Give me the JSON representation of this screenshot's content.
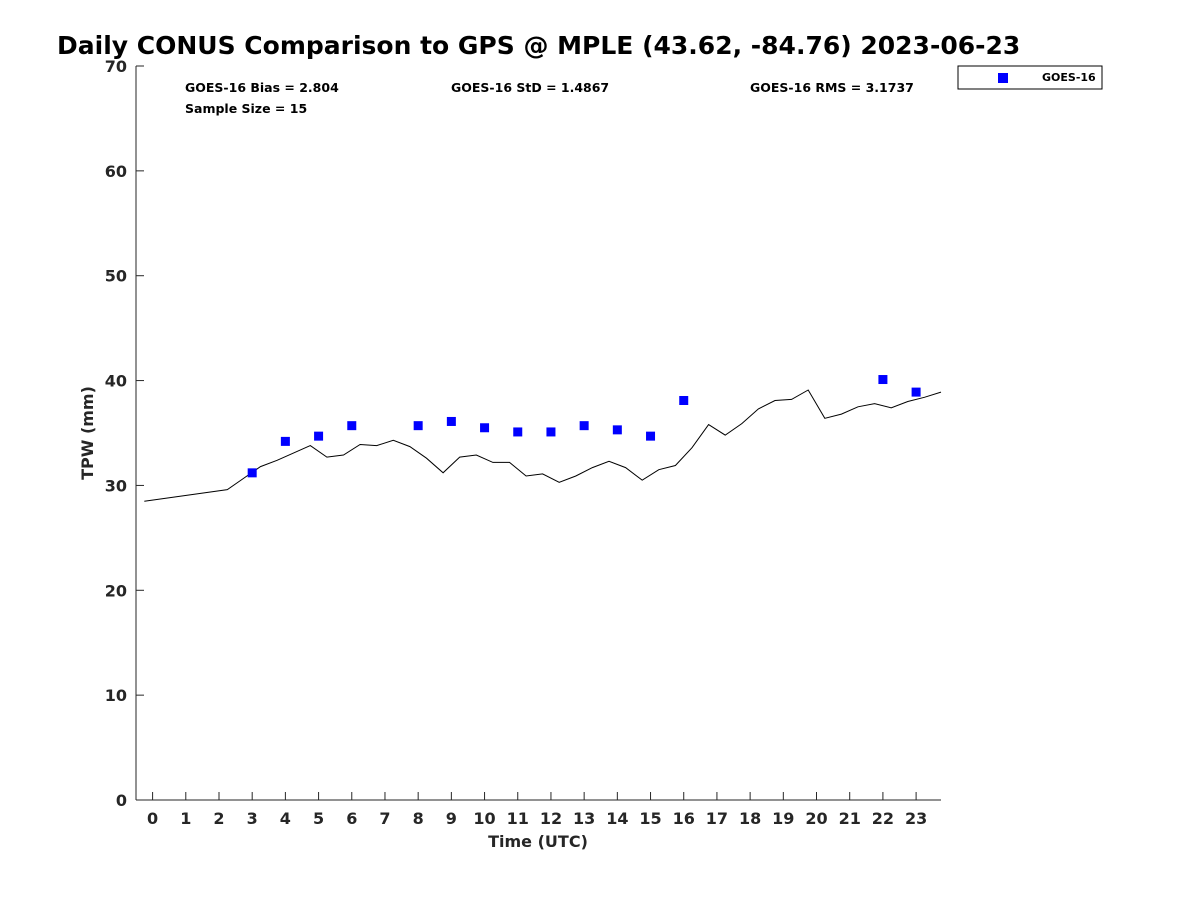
{
  "chart_data": {
    "type": "scatter",
    "title": "Daily CONUS Comparison to GPS @ MPLE (43.62, -84.76) 2023-06-23",
    "xlabel": "Time (UTC)",
    "ylabel": "TPW (mm)",
    "xlim": [
      -0.5,
      23.75
    ],
    "ylim": [
      0,
      70
    ],
    "x_ticks": [
      0,
      1,
      2,
      3,
      4,
      5,
      6,
      7,
      8,
      9,
      10,
      11,
      12,
      13,
      14,
      15,
      16,
      17,
      18,
      19,
      20,
      21,
      22,
      23
    ],
    "x_tick_labels": [
      "0",
      "1",
      "2",
      "3",
      "4",
      "5",
      "6",
      "7",
      "8",
      "9",
      "10",
      "11",
      "12",
      "13",
      "14",
      "15",
      "16",
      "17",
      "18",
      "19",
      "20",
      "21",
      "22",
      "23"
    ],
    "y_ticks": [
      0,
      10,
      20,
      30,
      40,
      50,
      60,
      70
    ],
    "y_tick_labels": [
      "0",
      "10",
      "20",
      "30",
      "40",
      "50",
      "60",
      "70"
    ],
    "grid": false,
    "legend_position": "top-right, outside plot",
    "stats": {
      "bias": "GOES-16 Bias = 2.804",
      "std": "GOES-16 StD = 1.4867",
      "rms": "GOES-16 RMS = 3.1737",
      "sample_size": "Sample Size = 15"
    },
    "series": [
      {
        "name": "GOES-16",
        "style": "markers",
        "marker": "square",
        "color": "#0000ff",
        "x": [
          3,
          4,
          5,
          6,
          8,
          9,
          10,
          11,
          12,
          13,
          14,
          15,
          16,
          22,
          23
        ],
        "y": [
          31.2,
          34.2,
          34.7,
          35.7,
          35.7,
          36.1,
          35.5,
          35.1,
          35.1,
          35.7,
          35.3,
          34.7,
          38.1,
          40.1,
          38.9
        ]
      },
      {
        "style": "line",
        "color": "#000000",
        "x": [
          -0.25,
          2.25,
          2.75,
          3.25,
          3.75,
          4.25,
          4.75,
          5.25,
          5.75,
          6.25,
          6.75,
          7.25,
          7.75,
          8.25,
          8.75,
          9.25,
          9.75,
          10.25,
          10.75,
          11.25,
          11.75,
          12.25,
          12.75,
          13.25,
          13.75,
          14.25,
          14.75,
          15.25,
          15.75,
          16.25,
          16.75,
          17.25,
          17.75,
          18.25,
          18.75,
          19.25,
          19.75,
          20.25,
          20.75,
          21.25,
          21.75,
          22.25,
          22.75,
          23.25,
          23.75
        ],
        "y": [
          28.5,
          29.6,
          30.7,
          31.8,
          32.4,
          33.1,
          33.8,
          32.7,
          32.9,
          33.9,
          33.8,
          34.3,
          33.7,
          32.6,
          31.2,
          32.7,
          32.9,
          32.2,
          32.2,
          30.9,
          31.1,
          30.3,
          30.9,
          31.7,
          32.3,
          31.7,
          30.5,
          31.5,
          31.9,
          33.6,
          35.8,
          34.8,
          35.9,
          37.3,
          38.1,
          38.2,
          39.1,
          36.4,
          36.8,
          37.5,
          37.8,
          37.4,
          38.0,
          38.4,
          38.9
        ]
      }
    ]
  }
}
